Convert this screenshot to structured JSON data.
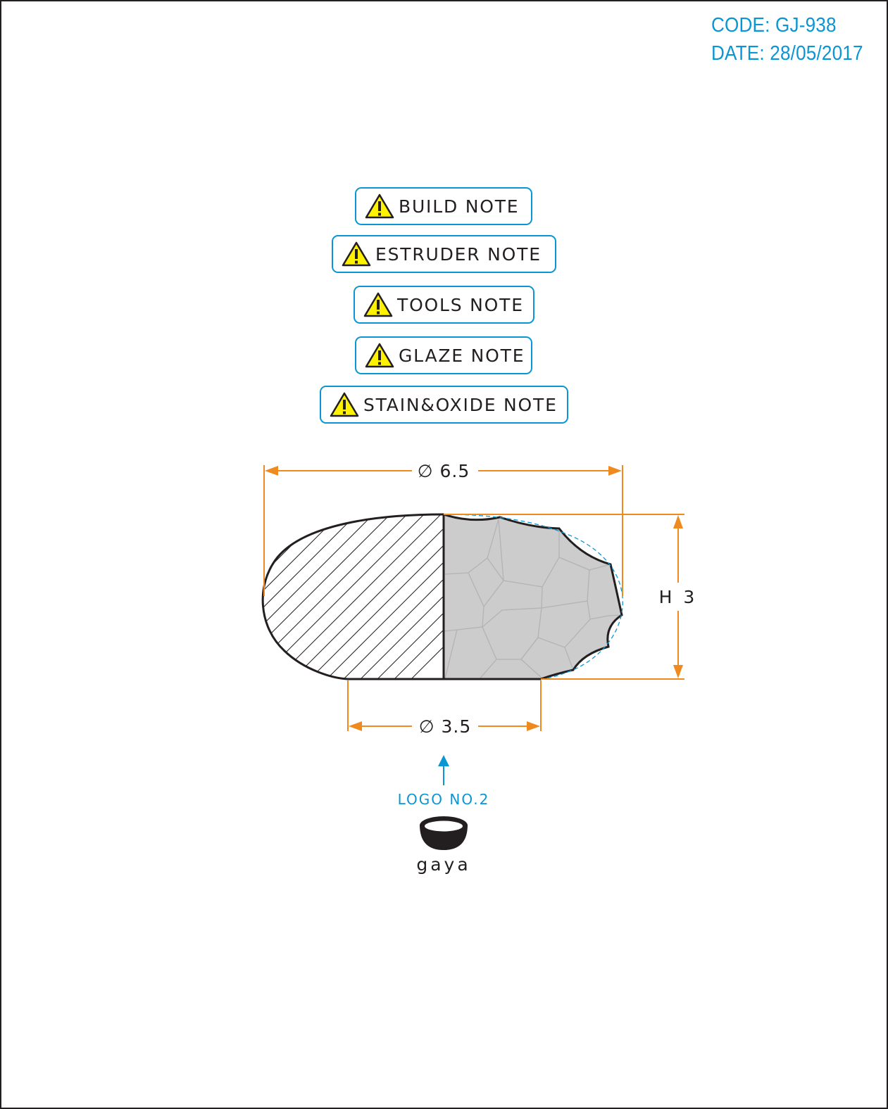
{
  "header": {
    "code": "CODE: GJ-938",
    "date": "DATE: 28/05/2017"
  },
  "notes": [
    {
      "label": "BUILD NOTE",
      "icon": "warning-icon"
    },
    {
      "label": "ESTRUDER NOTE",
      "icon": "warning-icon"
    },
    {
      "label": "TOOLS NOTE",
      "icon": "warning-icon"
    },
    {
      "label": "GLAZE NOTE",
      "icon": "warning-icon"
    },
    {
      "label": "STAIN&OXIDE NOTE",
      "icon": "warning-icon"
    }
  ],
  "dimensions": {
    "top_diameter": "∅ 6.5",
    "height": "H 3",
    "bottom_diameter": "∅ 3.5"
  },
  "logo": {
    "caption": "LOGO NO.2",
    "brand": "gaya"
  },
  "colors": {
    "accent_blue": "#0a96d4",
    "dimension_orange": "#ef8a1f",
    "outline": "#231f20",
    "glaze_fill": "#cccccc",
    "warning_yellow": "#fff200"
  }
}
